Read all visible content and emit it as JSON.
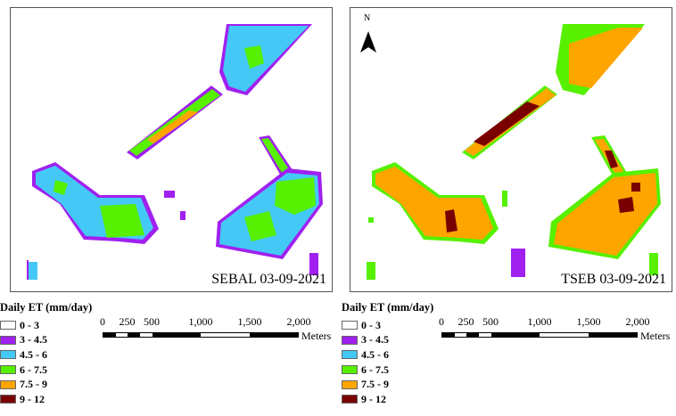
{
  "colors": {
    "class_0_3": "#ffffff",
    "class_3_45": "#a020f0",
    "class_45_6": "#44c8f5",
    "class_6_75": "#56f000",
    "class_75_9": "#ffa500",
    "class_9_12": "#7a0000"
  },
  "maps": {
    "left": {
      "label": "SEBAL 03-09-2021",
      "north_arrow": false
    },
    "right": {
      "label": "TSEB 03-09-2021",
      "north_arrow": true,
      "north_letter": "N"
    }
  },
  "legend": {
    "title": "Daily ET (mm/day)",
    "items": [
      {
        "label": "0 - 3",
        "color": "#ffffff"
      },
      {
        "label": "3 - 4.5",
        "color": "#a020f0"
      },
      {
        "label": "4.5 - 6",
        "color": "#44c8f5"
      },
      {
        "label": "6 - 7.5",
        "color": "#56f000"
      },
      {
        "label": "7.5 - 9",
        "color": "#ffa500"
      },
      {
        "label": "9 - 12",
        "color": "#7a0000"
      }
    ]
  },
  "scalebar": {
    "ticks": [
      "0",
      "250",
      "500",
      "1,000",
      "1,500",
      "2,000"
    ],
    "unit": "Meters"
  }
}
